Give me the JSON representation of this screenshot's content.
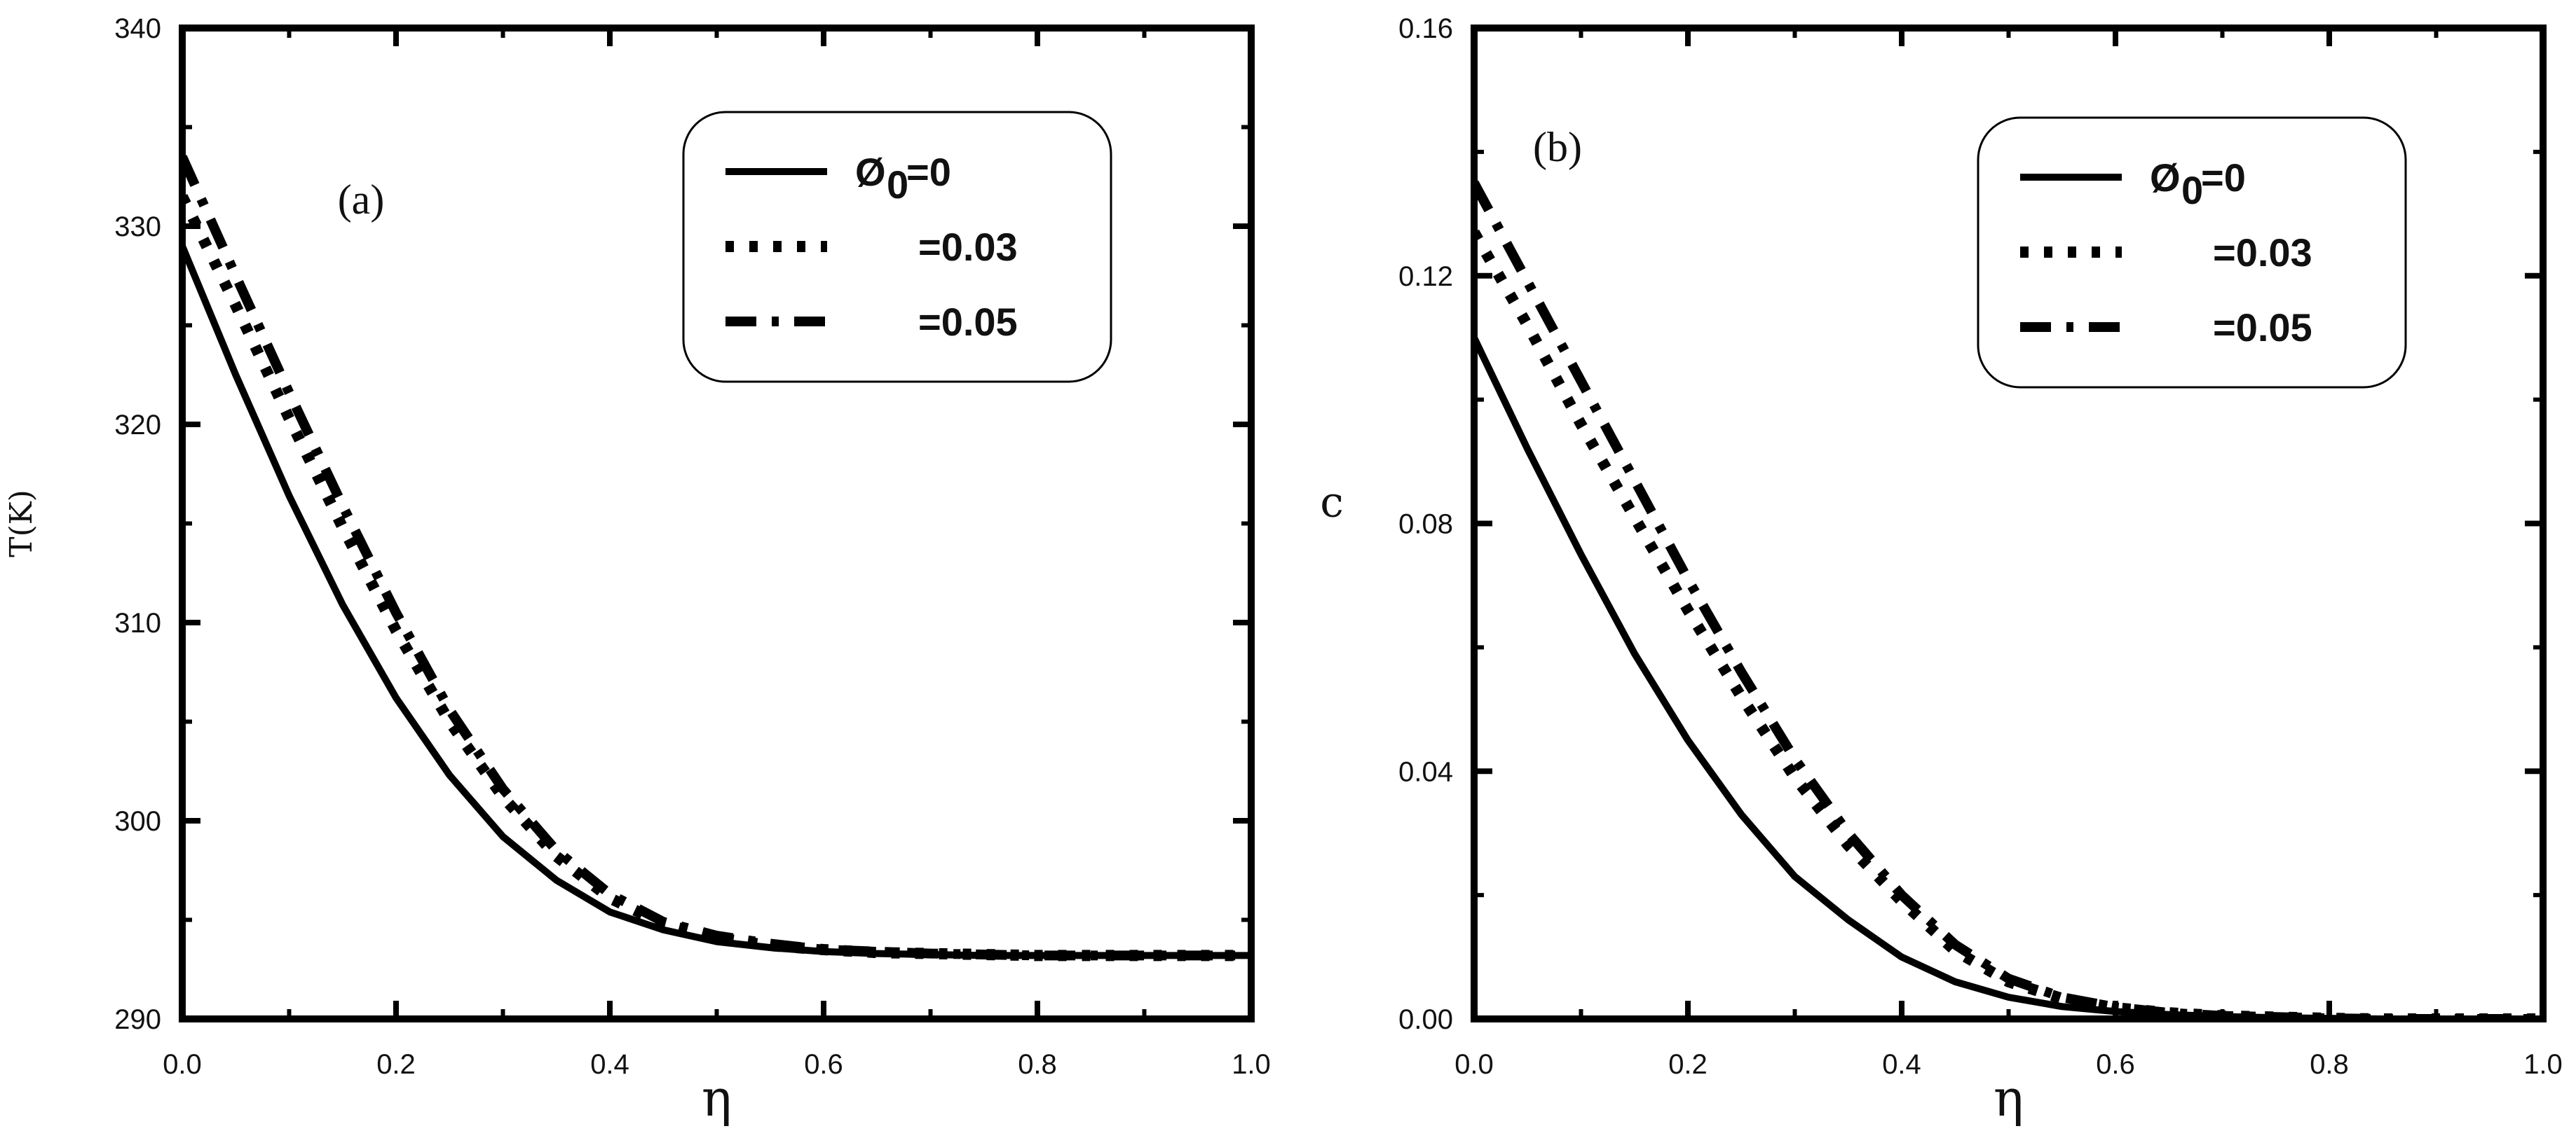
{
  "chart_data": [
    {
      "type": "line",
      "panel_label": "(a)",
      "xlabel": "η",
      "ylabel": "T(K)",
      "xlim": [
        0.0,
        1.0
      ],
      "ylim": [
        290,
        340
      ],
      "xticks": [
        "0.0",
        "0.2",
        "0.4",
        "0.6",
        "0.8",
        "1.0"
      ],
      "yticks": [
        "290",
        "300",
        "310",
        "320",
        "330",
        "340"
      ],
      "legend": {
        "position": "top-right",
        "symbol": "Ø",
        "subscript": "0",
        "entries": [
          "=0",
          "=0.03",
          "=0.05"
        ]
      },
      "x": [
        0.0,
        0.05,
        0.1,
        0.15,
        0.2,
        0.25,
        0.3,
        0.35,
        0.4,
        0.45,
        0.5,
        0.55,
        0.6,
        0.65,
        0.7,
        0.75,
        0.8,
        0.85,
        0.9,
        0.95,
        1.0
      ],
      "series": [
        {
          "name": "Ø0=0",
          "style": "solid",
          "values": [
            329.0,
            322.5,
            316.4,
            310.9,
            306.2,
            302.3,
            299.2,
            297.0,
            295.4,
            294.5,
            293.9,
            293.6,
            293.4,
            293.3,
            293.25,
            293.2,
            293.2,
            293.2,
            293.2,
            293.2,
            293.2
          ]
        },
        {
          "name": "Ø0=0.03",
          "style": "dotted",
          "values": [
            331.5,
            326.0,
            320.3,
            314.8,
            309.6,
            305.0,
            301.2,
            298.2,
            296.1,
            294.8,
            294.1,
            293.7,
            293.5,
            293.35,
            293.3,
            293.25,
            293.2,
            293.2,
            293.2,
            293.2,
            293.2
          ]
        },
        {
          "name": "Ø0=0.05",
          "style": "dash-dot",
          "values": [
            333.5,
            327.5,
            321.6,
            315.9,
            310.5,
            305.6,
            301.6,
            298.5,
            296.3,
            294.9,
            294.2,
            293.8,
            293.5,
            293.4,
            293.3,
            293.25,
            293.2,
            293.2,
            293.2,
            293.2,
            293.2
          ]
        }
      ]
    },
    {
      "type": "line",
      "panel_label": "(b)",
      "xlabel": "η",
      "ylabel": "c",
      "xlim": [
        0.0,
        1.0
      ],
      "ylim": [
        0.0,
        0.16
      ],
      "xticks": [
        "0.0",
        "0.2",
        "0.4",
        "0.6",
        "0.8",
        "1.0"
      ],
      "yticks": [
        "0.00",
        "0.04",
        "0.08",
        "0.12",
        "0.16"
      ],
      "legend": {
        "position": "top-right",
        "symbol": "Ø",
        "subscript": "0",
        "entries": [
          "=0",
          "=0.03",
          "=0.05"
        ]
      },
      "x": [
        0.0,
        0.05,
        0.1,
        0.15,
        0.2,
        0.25,
        0.3,
        0.35,
        0.4,
        0.45,
        0.5,
        0.55,
        0.6,
        0.65,
        0.7,
        0.75,
        0.8,
        0.85,
        0.9,
        0.95,
        1.0
      ],
      "series": [
        {
          "name": "Ø0=0",
          "style": "solid",
          "values": [
            0.11,
            0.092,
            0.075,
            0.059,
            0.045,
            0.033,
            0.023,
            0.016,
            0.01,
            0.006,
            0.0035,
            0.002,
            0.0012,
            0.0007,
            0.0004,
            0.0002,
            0.0001,
            0.0,
            0.0,
            0.0,
            0.0
          ]
        },
        {
          "name": "Ø0=0.03",
          "style": "dotted",
          "values": [
            0.127,
            0.112,
            0.096,
            0.081,
            0.066,
            0.052,
            0.039,
            0.028,
            0.019,
            0.011,
            0.006,
            0.0033,
            0.0018,
            0.001,
            0.0005,
            0.0003,
            0.0001,
            0.0,
            0.0,
            0.0,
            0.0
          ]
        },
        {
          "name": "Ø0=0.05",
          "style": "dash-dot",
          "values": [
            0.135,
            0.119,
            0.103,
            0.087,
            0.071,
            0.056,
            0.042,
            0.03,
            0.02,
            0.012,
            0.0065,
            0.0035,
            0.0019,
            0.001,
            0.0005,
            0.0003,
            0.0001,
            0.0,
            0.0,
            0.0,
            0.0
          ]
        }
      ]
    }
  ]
}
